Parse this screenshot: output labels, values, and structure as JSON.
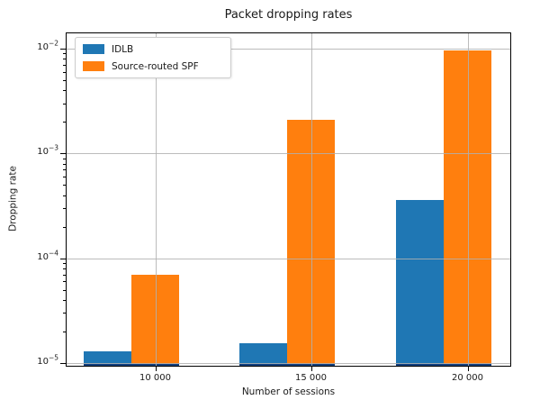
{
  "chart_data": {
    "type": "bar",
    "title": "Packet dropping rates",
    "xlabel": "Number of sessions",
    "ylabel": "Dropping rate",
    "categories": [
      "10 000",
      "15 000",
      "20 000"
    ],
    "series": [
      {
        "name": "IDLB",
        "color": "#1f77b4",
        "values": [
          1.3e-05,
          1.55e-05,
          0.00036
        ]
      },
      {
        "name": "Source-routed SPF",
        "color": "#ff7f0e",
        "values": [
          7e-05,
          0.0021,
          0.0097
        ]
      }
    ],
    "yscale": "log",
    "ylim": [
      1e-05,
      0.0145
    ],
    "ytick_base": "10",
    "yticks": [
      {
        "value": 0.01,
        "exp": "−2"
      },
      {
        "value": 0.001,
        "exp": "−3"
      },
      {
        "value": 0.0001,
        "exp": "−4"
      },
      {
        "value": 1e-05,
        "exp": "−5"
      }
    ],
    "grid": true,
    "legend_position": "upper left",
    "baseline_color": "#123f7e",
    "gridline_color": "#b0b0b0"
  }
}
